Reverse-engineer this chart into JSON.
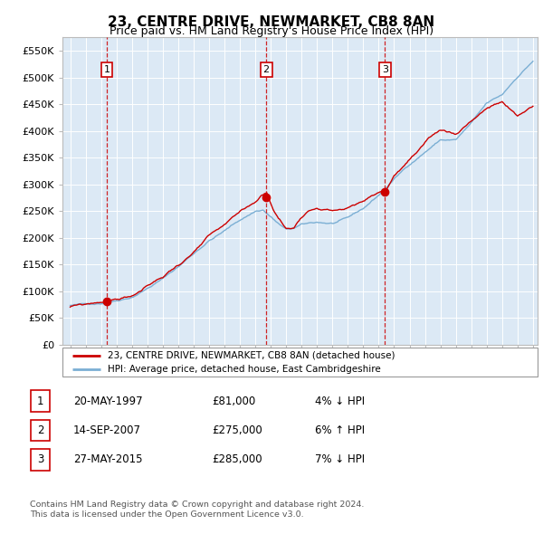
{
  "title": "23, CENTRE DRIVE, NEWMARKET, CB8 8AN",
  "subtitle": "Price paid vs. HM Land Registry's House Price Index (HPI)",
  "title_fontsize": 11,
  "subtitle_fontsize": 9,
  "fig_bg_color": "#ffffff",
  "plot_bg_color": "#dce9f5",
  "ylim": [
    0,
    575000
  ],
  "yticks": [
    0,
    50000,
    100000,
    150000,
    200000,
    250000,
    300000,
    350000,
    400000,
    450000,
    500000,
    550000
  ],
  "ytick_labels": [
    "£0",
    "£50K",
    "£100K",
    "£150K",
    "£200K",
    "£250K",
    "£300K",
    "£350K",
    "£400K",
    "£450K",
    "£500K",
    "£550K"
  ],
  "year_start": 1995,
  "year_end": 2025,
  "sale_dates": [
    1997.38,
    2007.71,
    2015.4
  ],
  "sale_prices": [
    81000,
    275000,
    285000
  ],
  "sale_labels": [
    "1",
    "2",
    "3"
  ],
  "legend_red": "23, CENTRE DRIVE, NEWMARKET, CB8 8AN (detached house)",
  "legend_blue": "HPI: Average price, detached house, East Cambridgeshire",
  "table_data": [
    [
      "1",
      "20-MAY-1997",
      "£81,000",
      "4% ↓ HPI"
    ],
    [
      "2",
      "14-SEP-2007",
      "£275,000",
      "6% ↑ HPI"
    ],
    [
      "3",
      "27-MAY-2015",
      "£285,000",
      "7% ↓ HPI"
    ]
  ],
  "footer_line1": "Contains HM Land Registry data © Crown copyright and database right 2024.",
  "footer_line2": "This data is licensed under the Open Government Licence v3.0.",
  "red_color": "#cc0000",
  "blue_color": "#7bafd4",
  "grid_color": "#ffffff"
}
